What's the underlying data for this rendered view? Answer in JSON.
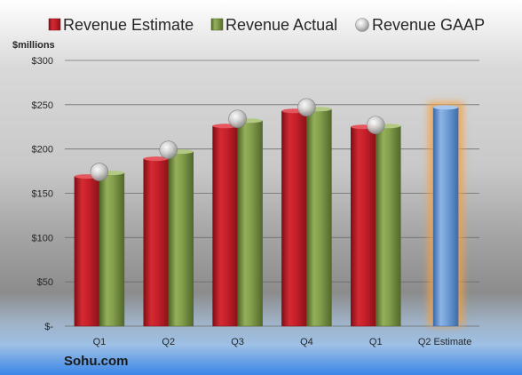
{
  "colors": {
    "estimate": "#c8202b",
    "actual": "#7f9a48",
    "gaap": "#bfbfbf",
    "future": "#6f9fd8",
    "highlight": "#f5a040"
  },
  "chart_data": {
    "type": "bar",
    "source": "Sohu.com",
    "ylabel": "$millions",
    "ylim": [
      0,
      300
    ],
    "yticks": [
      0,
      50,
      100,
      150,
      200,
      250,
      300
    ],
    "ytick_labels": [
      "$-",
      "$50",
      "$100",
      "$150",
      "$200",
      "$250",
      "$300"
    ],
    "categories": [
      "Q1",
      "Q2",
      "Q3",
      "Q4",
      "Q1",
      "Q2 Estimate"
    ],
    "legend_position": "top",
    "grid": true,
    "series": [
      {
        "name": "Revenue Estimate",
        "marker": "bar",
        "values": [
          169,
          189,
          226,
          243,
          225,
          247
        ]
      },
      {
        "name": "Revenue Actual",
        "marker": "bar",
        "values": [
          173,
          197,
          232,
          245,
          226,
          null
        ]
      },
      {
        "name": "Revenue GAAP",
        "marker": "circle",
        "values": [
          174,
          199,
          234,
          247,
          227,
          null
        ]
      }
    ]
  }
}
